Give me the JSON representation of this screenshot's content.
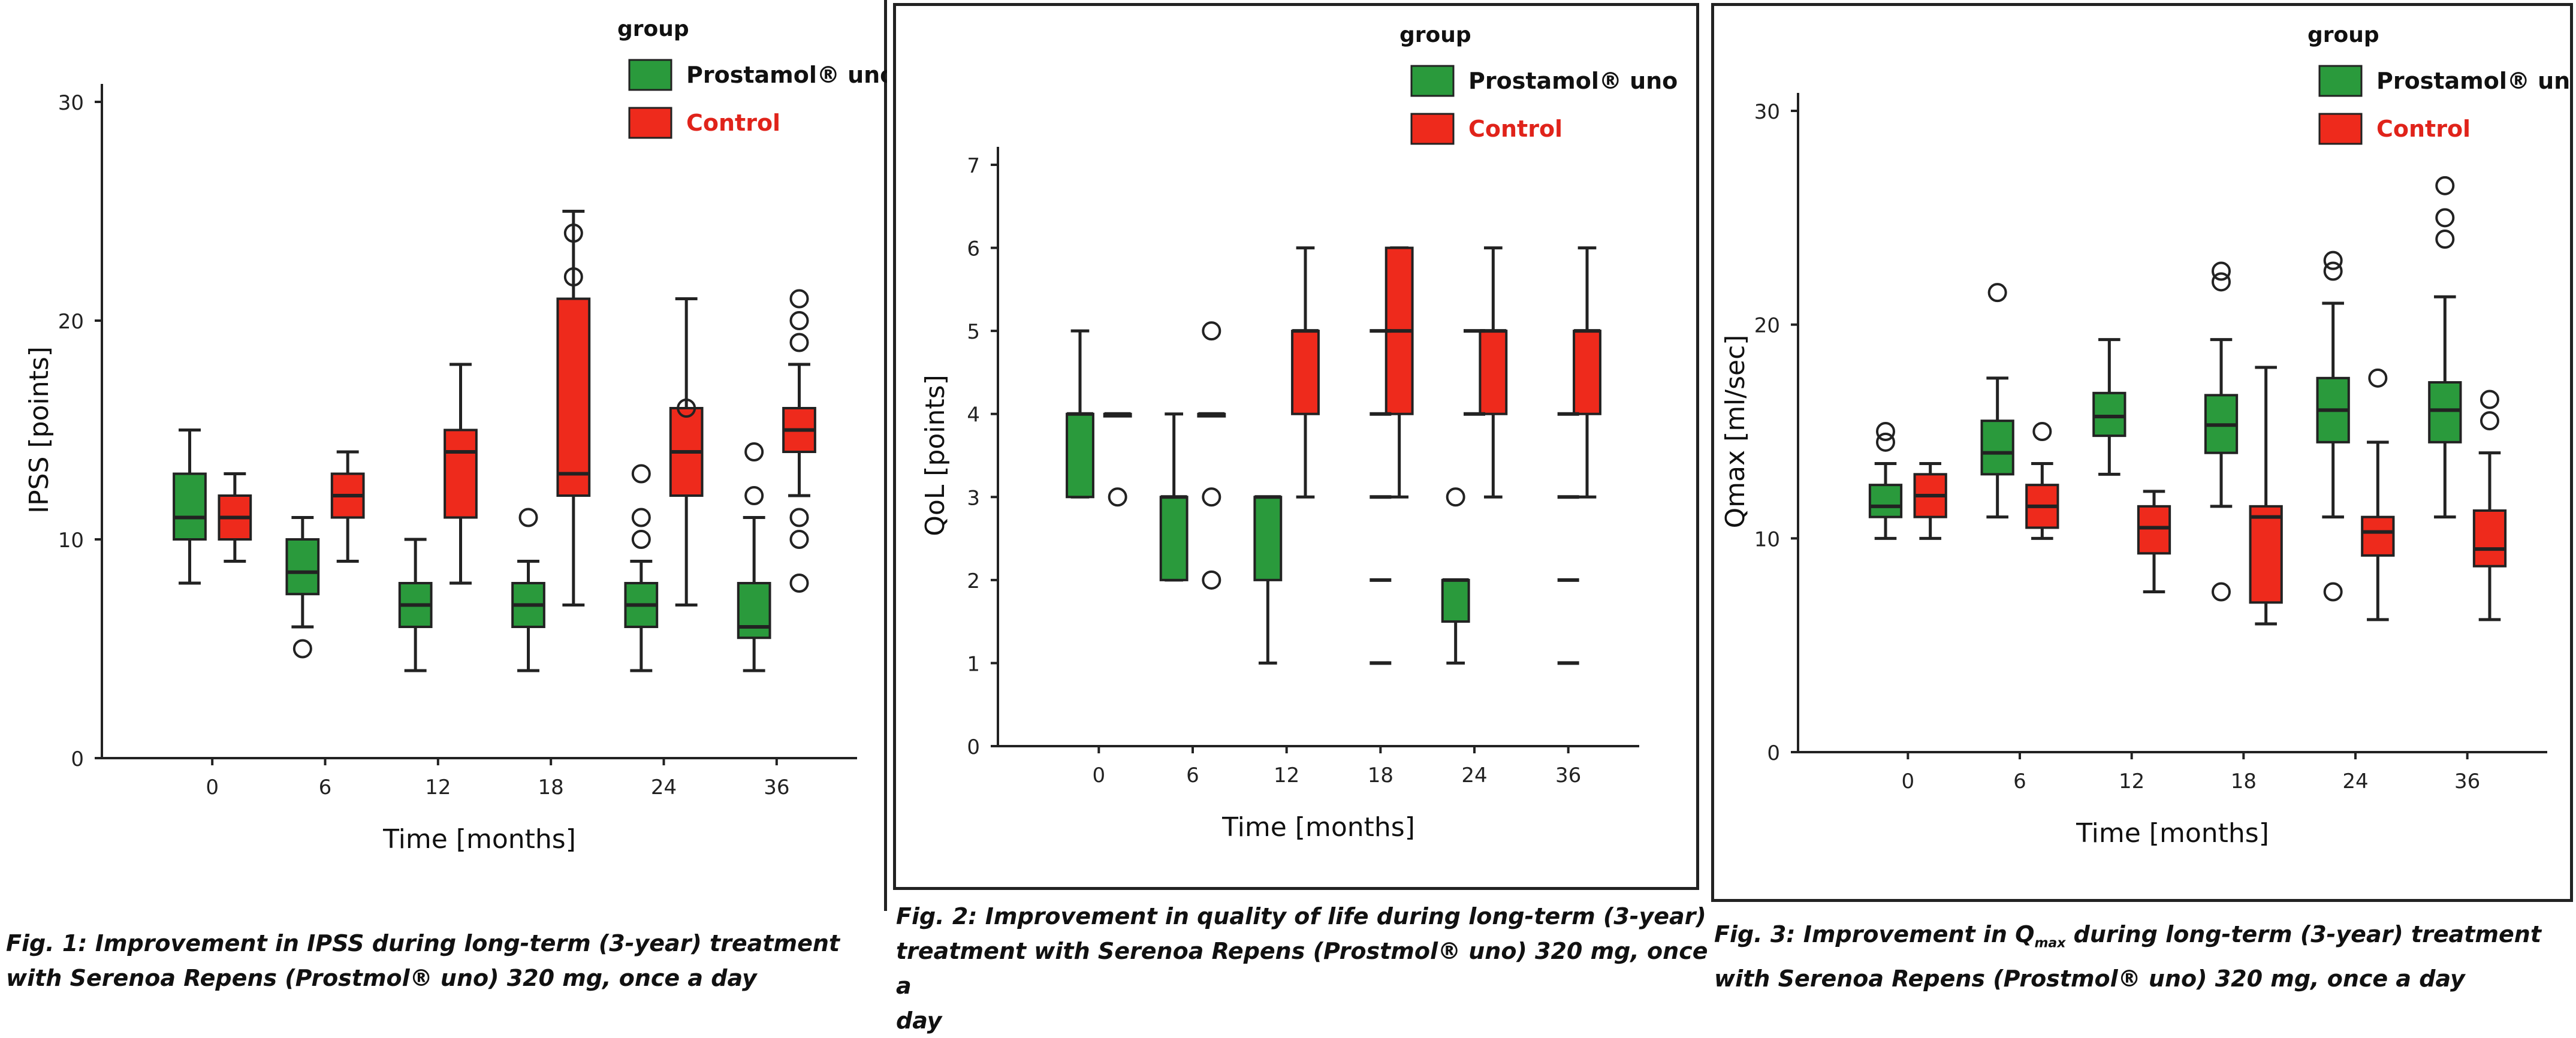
{
  "colors": {
    "green": "#2a9a3c",
    "red": "#ee2a1c",
    "control_text": "#e0231a",
    "line": "#222222"
  },
  "chart_data": [
    {
      "type": "boxplot",
      "ylabel": "IPSS [points]",
      "xlabel": "Time [months]",
      "categories": [
        "0",
        "6",
        "12",
        "18",
        "24",
        "36"
      ],
      "ylim": [
        0,
        30
      ],
      "yticks": [
        "0",
        "10",
        "20",
        "30"
      ],
      "legend": {
        "title": "group",
        "entries": [
          "Prostamol® uno",
          "Control"
        ],
        "position": "top-right"
      },
      "caption": "Fig. 1: Improvement in IPSS during long-term (3-year) treatment with Serenoa Repens (Prostmol® uno) 320 mg, once a day",
      "series": [
        {
          "name": "Prostamol® uno",
          "boxes": [
            {
              "min": 8,
              "q1": 10,
              "median": 11,
              "q3": 13,
              "max": 15,
              "outliers": []
            },
            {
              "min": 6,
              "q1": 7.5,
              "median": 8.5,
              "q3": 10,
              "max": 11,
              "outliers": [
                5
              ]
            },
            {
              "min": 4,
              "q1": 6,
              "median": 7,
              "q3": 8,
              "max": 10,
              "outliers": []
            },
            {
              "min": 4,
              "q1": 6,
              "median": 7,
              "q3": 8,
              "max": 9,
              "outliers": [
                11
              ]
            },
            {
              "min": 4,
              "q1": 6,
              "median": 7,
              "q3": 8,
              "max": 9,
              "outliers": [
                10,
                11,
                13
              ]
            },
            {
              "min": 4,
              "q1": 5.5,
              "median": 6,
              "q3": 8,
              "max": 11,
              "outliers": [
                12,
                14
              ]
            }
          ]
        },
        {
          "name": "Control",
          "boxes": [
            {
              "min": 9,
              "q1": 10,
              "median": 11,
              "q3": 12,
              "max": 13,
              "outliers": []
            },
            {
              "min": 9,
              "q1": 11,
              "median": 12,
              "q3": 13,
              "max": 14,
              "outliers": []
            },
            {
              "min": 8,
              "q1": 11,
              "median": 14,
              "q3": 15,
              "max": 18,
              "outliers": []
            },
            {
              "min": 7,
              "q1": 12,
              "median": 13,
              "q3": 21,
              "max": 25,
              "outliers": [
                22,
                24
              ]
            },
            {
              "min": 7,
              "q1": 12,
              "median": 14,
              "q3": 16,
              "max": 21,
              "outliers": [
                16
              ]
            },
            {
              "min": 12,
              "q1": 14,
              "median": 15,
              "q3": 16,
              "max": 18,
              "outliers": [
                8,
                10,
                11,
                19,
                20,
                21
              ]
            }
          ]
        }
      ]
    },
    {
      "type": "boxplot",
      "ylabel": "QoL [points]",
      "xlabel": "Time [months]",
      "categories": [
        "0",
        "6",
        "12",
        "18",
        "24",
        "36"
      ],
      "ylim": [
        0,
        7
      ],
      "yticks": [
        "0",
        "1",
        "2",
        "3",
        "4",
        "5",
        "6",
        "7"
      ],
      "legend": {
        "title": "group",
        "entries": [
          "Prostamol® uno",
          "Control"
        ],
        "position": "top-right"
      },
      "caption": "Fig. 2: Improvement in quality of life during long-term (3-year) treatment with Serenoa Repens (Prostmol® uno) 320 mg, once a day",
      "series": [
        {
          "name": "Prostamol® uno",
          "boxes": [
            {
              "min": 3,
              "q1": 3,
              "median": 4,
              "q3": 4,
              "max": 5,
              "outliers": []
            },
            {
              "min": 2,
              "q1": 2,
              "median": 3,
              "q3": 3,
              "max": 4,
              "outliers": []
            },
            {
              "min": 1,
              "q1": 2,
              "median": 3,
              "q3": 3,
              "max": 3,
              "outliers": []
            },
            null,
            {
              "min": 1,
              "q1": 1.5,
              "median": 2,
              "q3": 2,
              "max": 2,
              "outliers": [
                3
              ]
            },
            null
          ]
        },
        {
          "name": "Control",
          "boxes": [
            {
              "min": 4,
              "q1": 4,
              "median": 4,
              "q3": 4,
              "max": 4,
              "outliers": [
                3
              ]
            },
            {
              "min": 4,
              "q1": 4,
              "median": 4,
              "q3": 4,
              "max": 4,
              "outliers": [
                2,
                3,
                5
              ]
            },
            {
              "min": 3,
              "q1": 4,
              "median": 5,
              "q3": 5,
              "max": 6,
              "outliers": []
            },
            {
              "min": 3,
              "q1": 4,
              "median": 5,
              "q3": 6,
              "max": 6,
              "outliers": []
            },
            {
              "min": 3,
              "q1": 4,
              "median": 5,
              "q3": 5,
              "max": 6,
              "outliers": []
            },
            {
              "min": 3,
              "q1": 4,
              "median": 5,
              "q3": 5,
              "max": 6,
              "outliers": []
            }
          ]
        }
      ],
      "extra_marks": [
        {
          "category": "18",
          "values": [
            1,
            2,
            3,
            4,
            5
          ]
        },
        {
          "category": "24",
          "values": [
            4,
            5
          ]
        },
        {
          "category": "36",
          "values": [
            1,
            2,
            3,
            4
          ]
        }
      ]
    },
    {
      "type": "boxplot",
      "ylabel": "Qmax [ml/sec]",
      "xlabel": "Time [months]",
      "categories": [
        "0",
        "6",
        "12",
        "18",
        "24",
        "36"
      ],
      "ylim": [
        0,
        30
      ],
      "yticks": [
        "0",
        "10",
        "20",
        "30"
      ],
      "legend": {
        "title": "group",
        "entries": [
          "Prostamol® uno",
          "Control"
        ],
        "position": "top-right"
      },
      "caption": "Fig. 3: Improvement in Qmax during long-term (3-year) treatment with Serenoa Repens (Prostmol® uno) 320 mg, once a day",
      "series": [
        {
          "name": "Prostamol® uno",
          "boxes": [
            {
              "min": 10,
              "q1": 11,
              "median": 11.5,
              "q3": 12.5,
              "max": 13.5,
              "outliers": [
                14.5,
                15
              ]
            },
            {
              "min": 11,
              "q1": 13,
              "median": 14,
              "q3": 15.5,
              "max": 17.5,
              "outliers": [
                21.5
              ]
            },
            {
              "min": 13,
              "q1": 14.8,
              "median": 15.7,
              "q3": 16.8,
              "max": 19.3,
              "outliers": []
            },
            {
              "min": 11.5,
              "q1": 14,
              "median": 15.3,
              "q3": 16.7,
              "max": 19.3,
              "outliers": [
                7.5,
                22,
                22.5
              ]
            },
            {
              "min": 11,
              "q1": 14.5,
              "median": 16,
              "q3": 17.5,
              "max": 21,
              "outliers": [
                7.5,
                22.5,
                23
              ]
            },
            {
              "min": 11,
              "q1": 14.5,
              "median": 16,
              "q3": 17.3,
              "max": 21.3,
              "outliers": [
                24,
                25,
                26.5
              ]
            }
          ]
        },
        {
          "name": "Control",
          "boxes": [
            {
              "min": 10,
              "q1": 11,
              "median": 12,
              "q3": 13,
              "max": 13.5,
              "outliers": []
            },
            {
              "min": 10,
              "q1": 10.5,
              "median": 11.5,
              "q3": 12.5,
              "max": 13.5,
              "outliers": [
                15
              ]
            },
            {
              "min": 7.5,
              "q1": 9.3,
              "median": 10.5,
              "q3": 11.5,
              "max": 12.2,
              "outliers": []
            },
            {
              "min": 6,
              "q1": 7,
              "median": 11,
              "q3": 11.5,
              "max": 18,
              "outliers": []
            },
            {
              "min": 6.2,
              "q1": 9.2,
              "median": 10.3,
              "q3": 11,
              "max": 14.5,
              "outliers": [
                17.5
              ]
            },
            {
              "min": 6.2,
              "q1": 8.7,
              "median": 9.5,
              "q3": 11.3,
              "max": 14,
              "outliers": [
                15.5,
                16.5
              ]
            }
          ]
        }
      ]
    }
  ],
  "captions": [
    {
      "line1": "Fig. 1: Improvement in IPSS during long-term (3-year) treatment",
      "line2": "with Serenoa Repens (Prostmol® uno) 320 mg, once a day"
    },
    {
      "line1": "Fig. 2: Improvement in quality of life during long-term (3-year)",
      "line2": "treatment with Serenoa Repens (Prostmol® uno) 320 mg, once a",
      "line3": "day"
    },
    {
      "line1a": "Fig. 3: Improvement in Q",
      "line1sub": "max",
      "line1b": " during long-term (3-year) treatment",
      "line2": "with Serenoa Repens (Prostmol® uno) 320 mg, once a day"
    }
  ]
}
